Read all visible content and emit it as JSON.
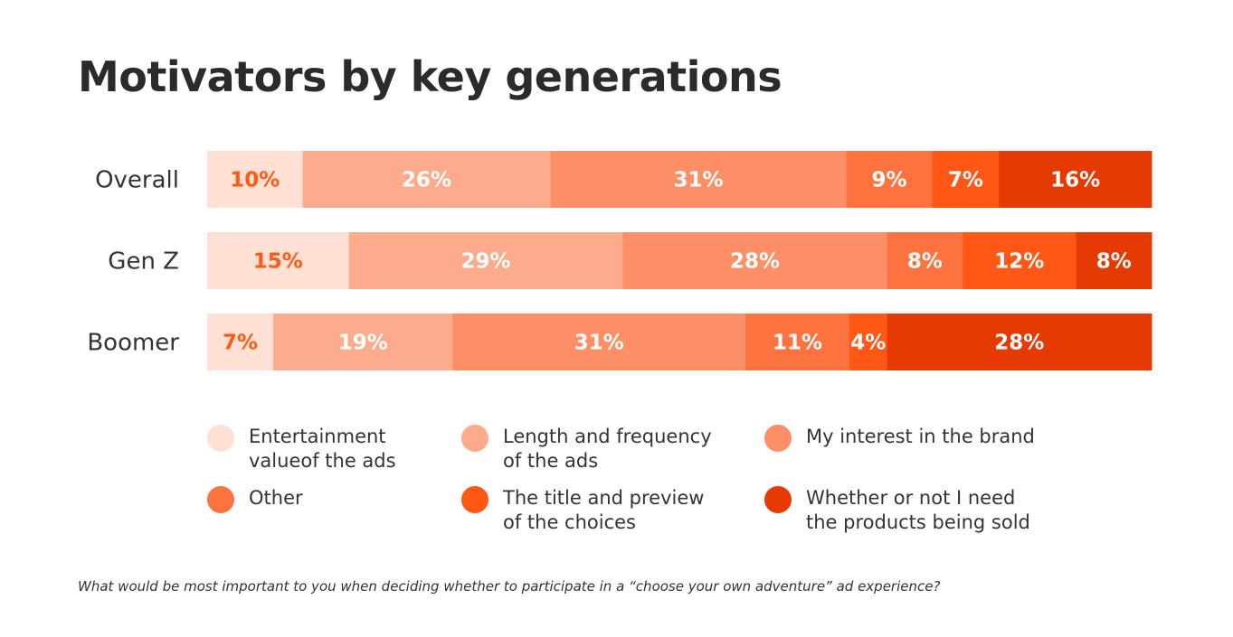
{
  "title": "Motivators by key generations",
  "footnote": "What would be most important to you when deciding whether to participate in a “choose your own adventure” ad experience?",
  "chart_data": {
    "type": "bar",
    "orientation": "horizontal",
    "stacked": true,
    "normalized_100": true,
    "categories": [
      "Overall",
      "Gen Z",
      "Boomer"
    ],
    "series": [
      {
        "name": "Entertainment valueof the ads",
        "color": "#ffe0d4",
        "label_color": "#ff5a14",
        "values": [
          10,
          15,
          7
        ]
      },
      {
        "name": "Length and frequency of the ads",
        "color": "#fdab8d",
        "label_color": "#ffffff",
        "values": [
          26,
          29,
          19
        ]
      },
      {
        "name": "My interest in the brand",
        "color": "#fd8f66",
        "label_color": "#ffffff",
        "values": [
          31,
          28,
          31
        ]
      },
      {
        "name": "Other",
        "color": "#fd7340",
        "label_color": "#ffffff",
        "values": [
          9,
          8,
          11
        ]
      },
      {
        "name": "The title and preview of the choices",
        "color": "#fe5716",
        "label_color": "#ffffff",
        "values": [
          7,
          12,
          4
        ]
      },
      {
        "name": "Whether or not I need the products being sold",
        "color": "#e63a04",
        "label_color": "#ffffff",
        "values": [
          16,
          8,
          28
        ]
      }
    ],
    "legend_placement": "bottom",
    "grid": false
  },
  "legend": [
    {
      "text": "Entertainment\nvalueof the ads",
      "color": "#ffe0d4"
    },
    {
      "text": "Length and frequency\nof the ads",
      "color": "#fdab8d"
    },
    {
      "text": "My interest in the brand",
      "color": "#fd8f66"
    },
    {
      "text": "Other",
      "color": "#fd7340"
    },
    {
      "text": "The title and preview\nof the choices",
      "color": "#fe5716"
    },
    {
      "text": "Whether or not I need\nthe products being sold",
      "color": "#e63a04"
    }
  ]
}
